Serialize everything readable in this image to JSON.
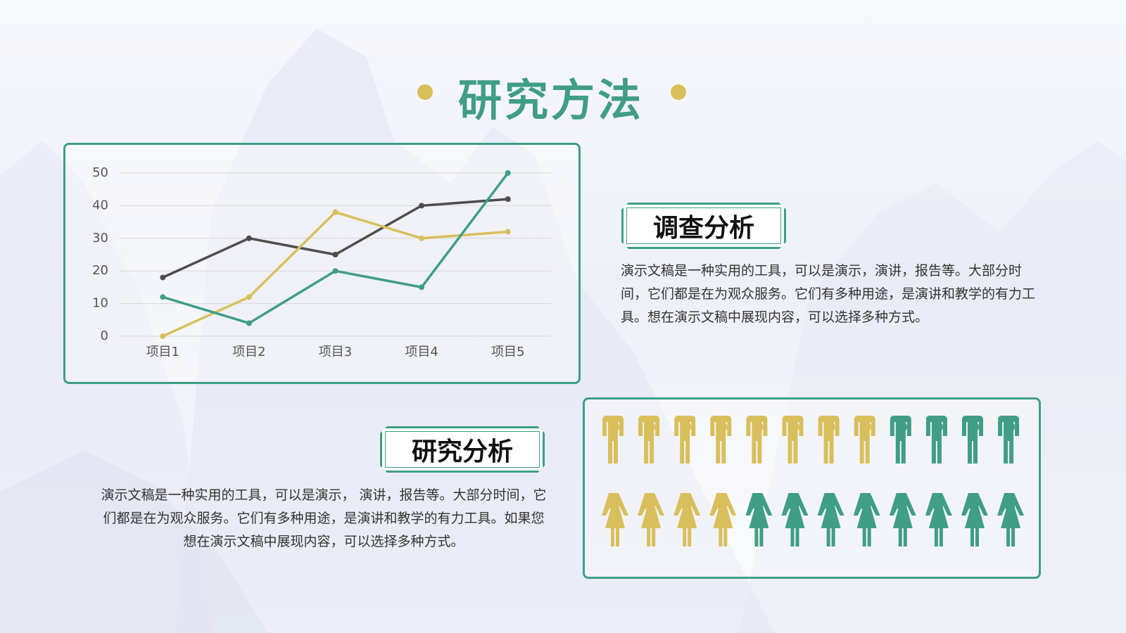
{
  "title": "研究方法",
  "chart_data": {
    "type": "line",
    "categories": [
      "项目1",
      "项目2",
      "项目3",
      "项目4",
      "项目5"
    ],
    "series": [
      {
        "color": "#4d4d4d",
        "values": [
          18,
          30,
          25,
          40,
          42
        ]
      },
      {
        "color": "#d9bf5c",
        "values": [
          0,
          12,
          38,
          30,
          32
        ]
      },
      {
        "color": "#3f9e85",
        "values": [
          12,
          4,
          20,
          15,
          50
        ]
      }
    ],
    "ylim": [
      0,
      50
    ],
    "yticks": [
      0,
      10,
      20,
      30,
      40,
      50
    ],
    "grid": true
  },
  "sections": [
    {
      "heading": "调查分析",
      "text": "演示文稿是一种实用的工具，可以是演示，演讲，报告等。大部分时间，它们都是在为观众服务。它们有多种用途，是演讲和教学的有力工具。想在演示文稿中展现内容，可以选择多种方式。"
    },
    {
      "heading": "研究分析",
      "text": "演示文稿是一种实用的工具，可以是演示， 演讲，报告等。大部分时间，它们都是在为观众服务。它们有多种用途，是演讲和教学的有力工具。如果您想在演示文稿中展现内容，可以选择多种方式。"
    }
  ],
  "pictogram": {
    "colors": [
      "#d9bf5c",
      "#3f9e85"
    ],
    "rows": [
      [
        8,
        4
      ],
      [
        4,
        8
      ]
    ]
  }
}
